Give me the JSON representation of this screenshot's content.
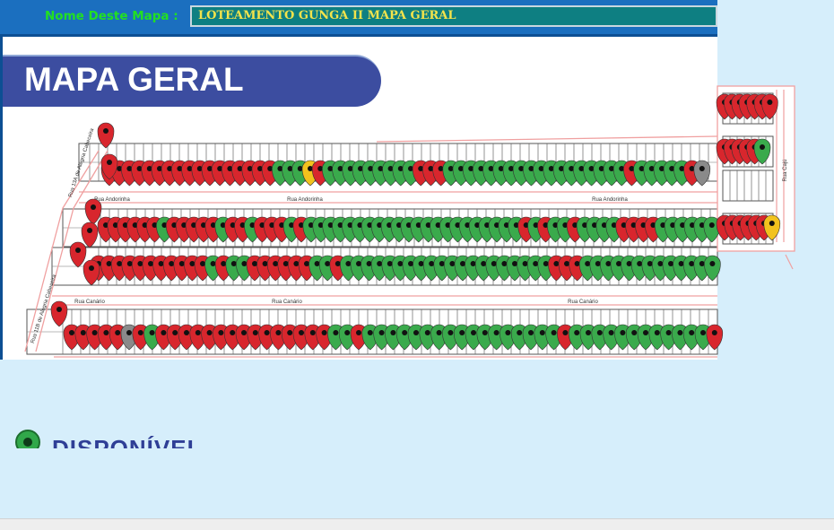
{
  "header": {
    "map_name_label": "Nome Deste Mapa :",
    "map_name_value": "LOTEAMENTO GUNGA II MAPA GERAL"
  },
  "map": {
    "title": "MAPA GERAL",
    "streets": [
      {
        "name": "Rua Andorinha"
      },
      {
        "name": "Rua Canário"
      },
      {
        "name": "Rua Cajú"
      }
    ],
    "side_streets": [
      {
        "name": "Rua 13A de Alegria Cabeceira"
      },
      {
        "name": "Rua 11B de Alegria Cabeceira"
      }
    ],
    "legend": [
      {
        "label": "DISPONÍVEL",
        "icon": "green-pin-icon"
      }
    ],
    "status_colors": {
      "available": "#3aaa4c",
      "sold": "#d8262d",
      "reserved": "#f2c21d",
      "blocked": "#8a8a8a"
    },
    "rows": [
      {
        "pins": "RRRRRRRRRRRRRRRRRGGGYRGGGGGGGGGRRRGGGGGGGGGGGGGGGGGGRGGGGGRX"
      },
      {
        "pins": "RRRRRRGRRRRRGRRGRRRGRGGGGGGGGGGGGGGGGGGGGGGRGRGGRGGGGRRRRGGGGGG"
      },
      {
        "pins": "RRRRRRRRRRRGRGGRRRRRRGGRGGGGGGGGGGGGGGGGGGGGRRRGGGGGGGGGGGGG"
      },
      {
        "pins": "RRRRRXRGRRRRRRRRRRRRRRRGGRGGGGGGGGGGGGGGGGGRGGGGGGGGGGGGR"
      },
      {
        "pins": "RRRRRRR"
      },
      {
        "pins": "RRRRRG"
      },
      {
        "pins": "RRRRRRY"
      }
    ],
    "approach_pins": "RRRRRRR"
  }
}
